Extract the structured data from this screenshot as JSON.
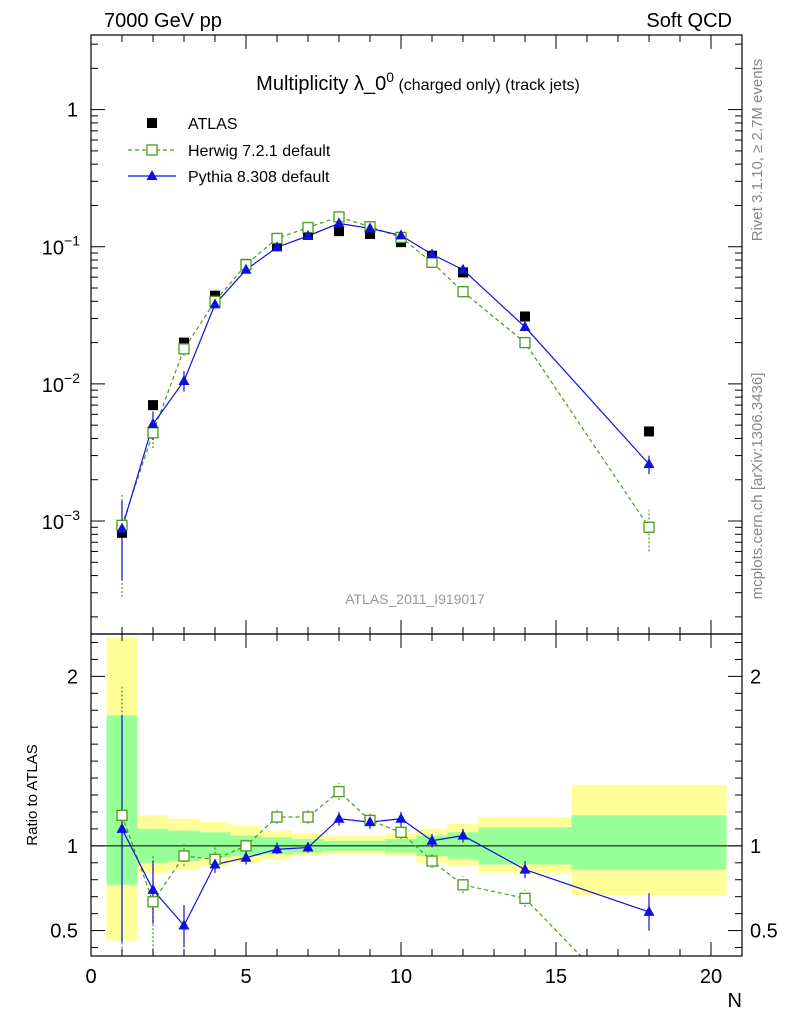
{
  "header": {
    "left": "7000 GeV pp",
    "right": "Soft QCD"
  },
  "side_labels": {
    "rivet": "Rivet 3.1.10, ≥ 2.7M events",
    "mcplots": "mcplots.cern.ch [arXiv:1306.3436]"
  },
  "watermark": "ATLAS_2011_I919017",
  "chart_data": [
    {
      "type": "scatter",
      "title_main": "Multiplicity λ_0",
      "title_sup": "0",
      "title_sub": " (charged only) (track jets)",
      "xlabel": "N",
      "ylabel": "",
      "yscale": "log",
      "xlim": [
        0,
        21
      ],
      "ylim": [
        0.00015,
        3.5
      ],
      "y_ticks": [
        {
          "v": 1,
          "base": "1",
          "exp": ""
        },
        {
          "v": 0.1,
          "base": "10",
          "exp": "−1"
        },
        {
          "v": 0.01,
          "base": "10",
          "exp": "−2"
        },
        {
          "v": 0.001,
          "base": "10",
          "exp": "−3"
        }
      ],
      "legend_position": "top-left",
      "series": [
        {
          "name": "ATLAS",
          "color": "#000000",
          "marker": "filled-square",
          "x": [
            1,
            2,
            3,
            4,
            5,
            6,
            7,
            8,
            9,
            10,
            11,
            12,
            14,
            18
          ],
          "y": [
            0.00082,
            0.007,
            0.02,
            0.044,
            0.075,
            0.102,
            0.122,
            0.13,
            0.124,
            0.108,
            0.086,
            0.065,
            0.031,
            0.0045
          ]
        },
        {
          "name": "Herwig 7.2.1 default",
          "color": "#4a9a19",
          "marker": "open-square",
          "dashed": true,
          "x": [
            1,
            2,
            3,
            4,
            5,
            6,
            7,
            8,
            9,
            10,
            11,
            12,
            14,
            18
          ],
          "y": [
            0.00093,
            0.0044,
            0.018,
            0.04,
            0.074,
            0.115,
            0.138,
            0.165,
            0.14,
            0.117,
            0.077,
            0.047,
            0.02,
            0.0009
          ],
          "err_low": [
            0.00028,
            0.0034,
            0.016,
            0.038,
            0.072,
            0.11,
            0.134,
            0.158,
            0.135,
            0.113,
            0.074,
            0.045,
            0.0193,
            0.0006
          ],
          "err_high": [
            0.0016,
            0.0052,
            0.02,
            0.042,
            0.076,
            0.12,
            0.142,
            0.172,
            0.145,
            0.121,
            0.08,
            0.049,
            0.0208,
            0.0012
          ]
        },
        {
          "name": "Pythia 8.308 default",
          "color": "#1010dd",
          "marker": "filled-triangle",
          "x": [
            1,
            2,
            3,
            4,
            5,
            6,
            7,
            8,
            9,
            10,
            11,
            12,
            14,
            18
          ],
          "y": [
            0.00088,
            0.0051,
            0.0105,
            0.038,
            0.068,
            0.099,
            0.12,
            0.148,
            0.136,
            0.121,
            0.088,
            0.068,
            0.026,
            0.0026
          ],
          "err_low": [
            0.00037,
            0.0039,
            0.0088,
            0.036,
            0.066,
            0.096,
            0.117,
            0.144,
            0.132,
            0.117,
            0.085,
            0.066,
            0.0245,
            0.0022
          ],
          "err_high": [
            0.0014,
            0.0063,
            0.0124,
            0.04,
            0.07,
            0.102,
            0.123,
            0.152,
            0.14,
            0.125,
            0.091,
            0.07,
            0.0275,
            0.003
          ]
        }
      ]
    },
    {
      "type": "scatter",
      "title": "",
      "xlabel": "N",
      "ylabel": "Ratio to ATLAS",
      "xlim": [
        0,
        21
      ],
      "ylim": [
        0.35,
        2.25
      ],
      "x_ticks": [
        0,
        5,
        10,
        15,
        20
      ],
      "y_ticks": [
        0.5,
        1,
        2
      ],
      "reference_line": 1,
      "bands": [
        {
          "x0": 0.5,
          "x1": 1.5,
          "yellow": [
            0.44,
            2.23
          ],
          "green": [
            0.77,
            1.77
          ]
        },
        {
          "x0": 1.5,
          "x1": 2.5,
          "yellow": [
            0.84,
            1.18
          ],
          "green": [
            0.9,
            1.1
          ]
        },
        {
          "x0": 2.5,
          "x1": 3.5,
          "yellow": [
            0.86,
            1.16
          ],
          "green": [
            0.91,
            1.09
          ]
        },
        {
          "x0": 3.5,
          "x1": 4.5,
          "yellow": [
            0.88,
            1.14
          ],
          "green": [
            0.93,
            1.08
          ]
        },
        {
          "x0": 4.5,
          "x1": 5.5,
          "yellow": [
            0.9,
            1.12
          ],
          "green": [
            0.94,
            1.06
          ]
        },
        {
          "x0": 5.5,
          "x1": 6.5,
          "yellow": [
            0.92,
            1.09
          ],
          "green": [
            0.95,
            1.05
          ]
        },
        {
          "x0": 6.5,
          "x1": 7.5,
          "yellow": [
            0.94,
            1.07
          ],
          "green": [
            0.96,
            1.04
          ]
        },
        {
          "x0": 7.5,
          "x1": 8.5,
          "yellow": [
            0.95,
            1.06
          ],
          "green": [
            0.97,
            1.03
          ]
        },
        {
          "x0": 8.5,
          "x1": 9.5,
          "yellow": [
            0.95,
            1.06
          ],
          "green": [
            0.97,
            1.03
          ]
        },
        {
          "x0": 9.5,
          "x1": 10.5,
          "yellow": [
            0.94,
            1.07
          ],
          "green": [
            0.96,
            1.04
          ]
        },
        {
          "x0": 10.5,
          "x1": 11.5,
          "yellow": [
            0.9,
            1.1
          ],
          "green": [
            0.94,
            1.06
          ]
        },
        {
          "x0": 11.5,
          "x1": 12.5,
          "yellow": [
            0.88,
            1.13
          ],
          "green": [
            0.92,
            1.08
          ]
        },
        {
          "x0": 12.5,
          "x1": 15.5,
          "yellow": [
            0.84,
            1.17
          ],
          "green": [
            0.89,
            1.11
          ]
        },
        {
          "x0": 15.5,
          "x1": 20.5,
          "yellow": [
            0.71,
            1.36
          ],
          "green": [
            0.86,
            1.18
          ]
        }
      ],
      "series": [
        {
          "name": "Herwig 7.2.1 default",
          "color": "#4a9a19",
          "x": [
            1,
            2,
            3,
            4,
            5,
            6,
            7,
            8,
            9,
            10,
            11,
            12,
            14,
            15.8
          ],
          "y": [
            1.18,
            0.67,
            0.94,
            0.92,
            1.0,
            1.17,
            1.17,
            1.32,
            1.15,
            1.08,
            0.91,
            0.77,
            0.69,
            0.35
          ],
          "err_low": [
            0.3,
            0.36,
            0.88,
            0.86,
            0.97,
            1.13,
            1.13,
            1.27,
            1.11,
            1.04,
            0.87,
            0.72,
            0.64,
            0.35
          ],
          "err_high": [
            1.95,
            0.95,
            1.02,
            0.99,
            1.04,
            1.21,
            1.21,
            1.37,
            1.19,
            1.12,
            0.95,
            0.82,
            0.74,
            0.35
          ]
        },
        {
          "name": "Pythia 8.308 default",
          "color": "#1010dd",
          "x": [
            1,
            2,
            3,
            4,
            5,
            6,
            7,
            8,
            9,
            10,
            11,
            12,
            14,
            18
          ],
          "y": [
            1.1,
            0.74,
            0.53,
            0.89,
            0.93,
            0.98,
            0.99,
            1.16,
            1.14,
            1.16,
            1.03,
            1.06,
            0.86,
            0.61
          ],
          "err_low": [
            0.43,
            0.54,
            0.4,
            0.84,
            0.89,
            0.95,
            0.96,
            1.12,
            1.1,
            1.12,
            0.99,
            1.02,
            0.81,
            0.5
          ],
          "err_high": [
            1.77,
            0.91,
            0.65,
            0.95,
            0.97,
            1.02,
            1.02,
            1.2,
            1.18,
            1.2,
            1.07,
            1.1,
            0.91,
            0.72
          ]
        }
      ]
    }
  ]
}
